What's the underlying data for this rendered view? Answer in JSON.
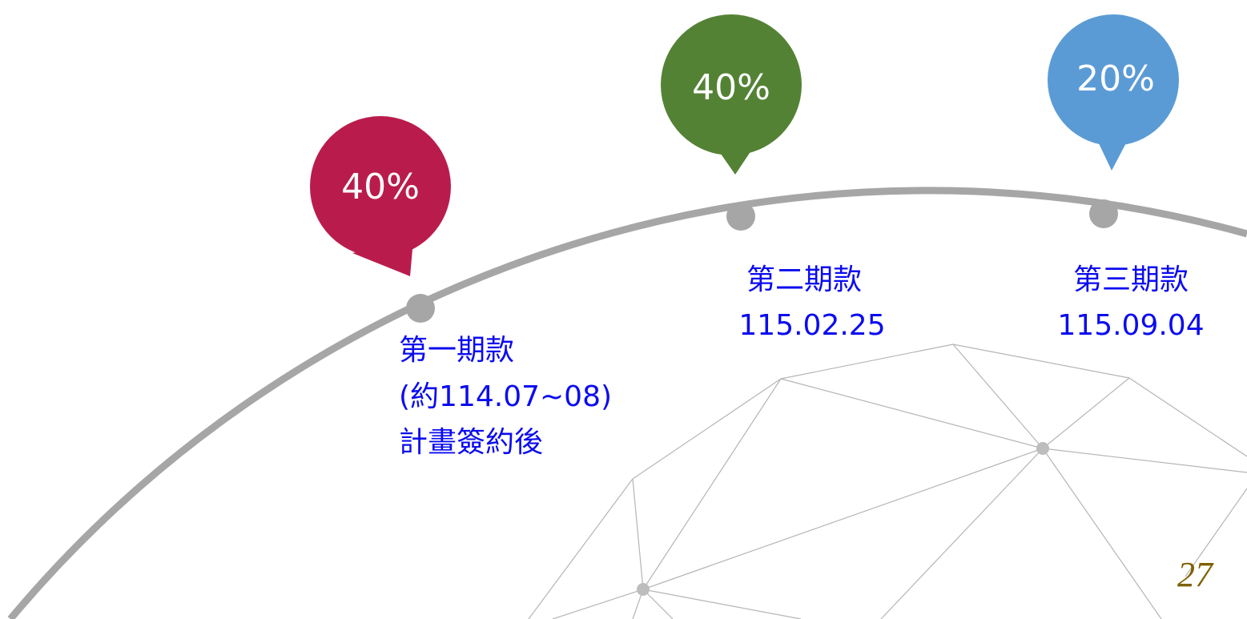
{
  "milestones": [
    {
      "percent": "40%",
      "title": "第一期款",
      "lines": [
        "(約114.07~08)",
        "計畫簽約後"
      ]
    },
    {
      "percent": "40%",
      "title": "第二期款",
      "lines": [
        "115.02.25"
      ]
    },
    {
      "percent": "20%",
      "title": "第三期款",
      "lines": [
        "115.09.04"
      ]
    }
  ],
  "page_number": "27"
}
